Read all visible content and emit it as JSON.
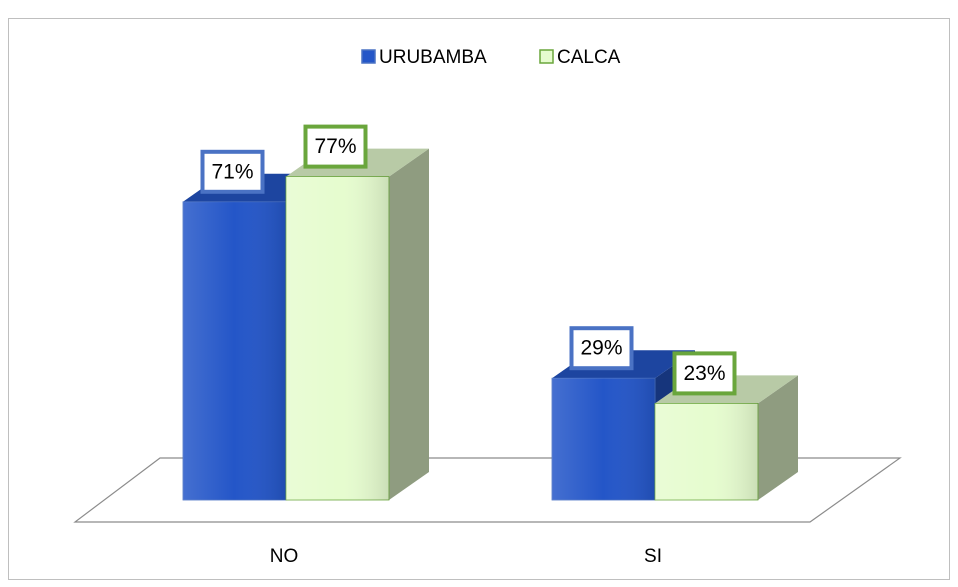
{
  "chart_data": {
    "type": "bar3d",
    "categories": [
      "NO",
      "SI"
    ],
    "series": [
      {
        "name": "URUBAMBA",
        "color": "#2456c8",
        "border": "#4a72c4",
        "values": [
          71,
          29
        ],
        "value_labels": [
          "71%",
          "29%"
        ]
      },
      {
        "name": "CALCA",
        "color": "#e6fccf",
        "border": "#6aa63c",
        "values": [
          77,
          23
        ],
        "value_labels": [
          "77%",
          "23%"
        ]
      }
    ],
    "ylim": [
      0,
      100
    ],
    "legend": "top"
  }
}
